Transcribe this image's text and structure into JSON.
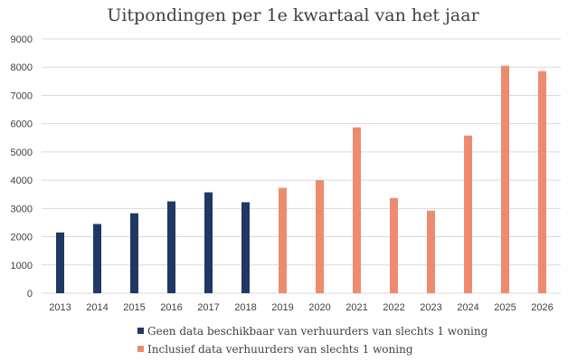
{
  "chart_data": {
    "type": "bar",
    "title": "Uitpondingen per 1e kwartaal van het jaar",
    "xlabel": "",
    "ylabel": "",
    "ylim": [
      0,
      9000
    ],
    "yticks": [
      0,
      1000,
      2000,
      3000,
      4000,
      5000,
      6000,
      7000,
      8000,
      9000
    ],
    "grid": true,
    "legend_position": "bottom",
    "categories": [
      "2013",
      "2014",
      "2015",
      "2016",
      "2017",
      "2018",
      "2019",
      "2020",
      "2021",
      "2022",
      "2023",
      "2024",
      "2025",
      "2026"
    ],
    "series": [
      {
        "name": "Geen data beschikbaar van verhuurders van slechts 1 woning",
        "color": "#203864",
        "values": [
          2150,
          2450,
          2830,
          3250,
          3570,
          3220,
          null,
          null,
          null,
          null,
          null,
          null,
          null,
          null
        ]
      },
      {
        "name": "Inclusief data verhuurders van slechts 1 woning",
        "color": "#ed8b6e",
        "values": [
          null,
          null,
          null,
          null,
          null,
          null,
          3730,
          4000,
          5870,
          3370,
          2920,
          5580,
          8050,
          7860
        ]
      }
    ]
  }
}
